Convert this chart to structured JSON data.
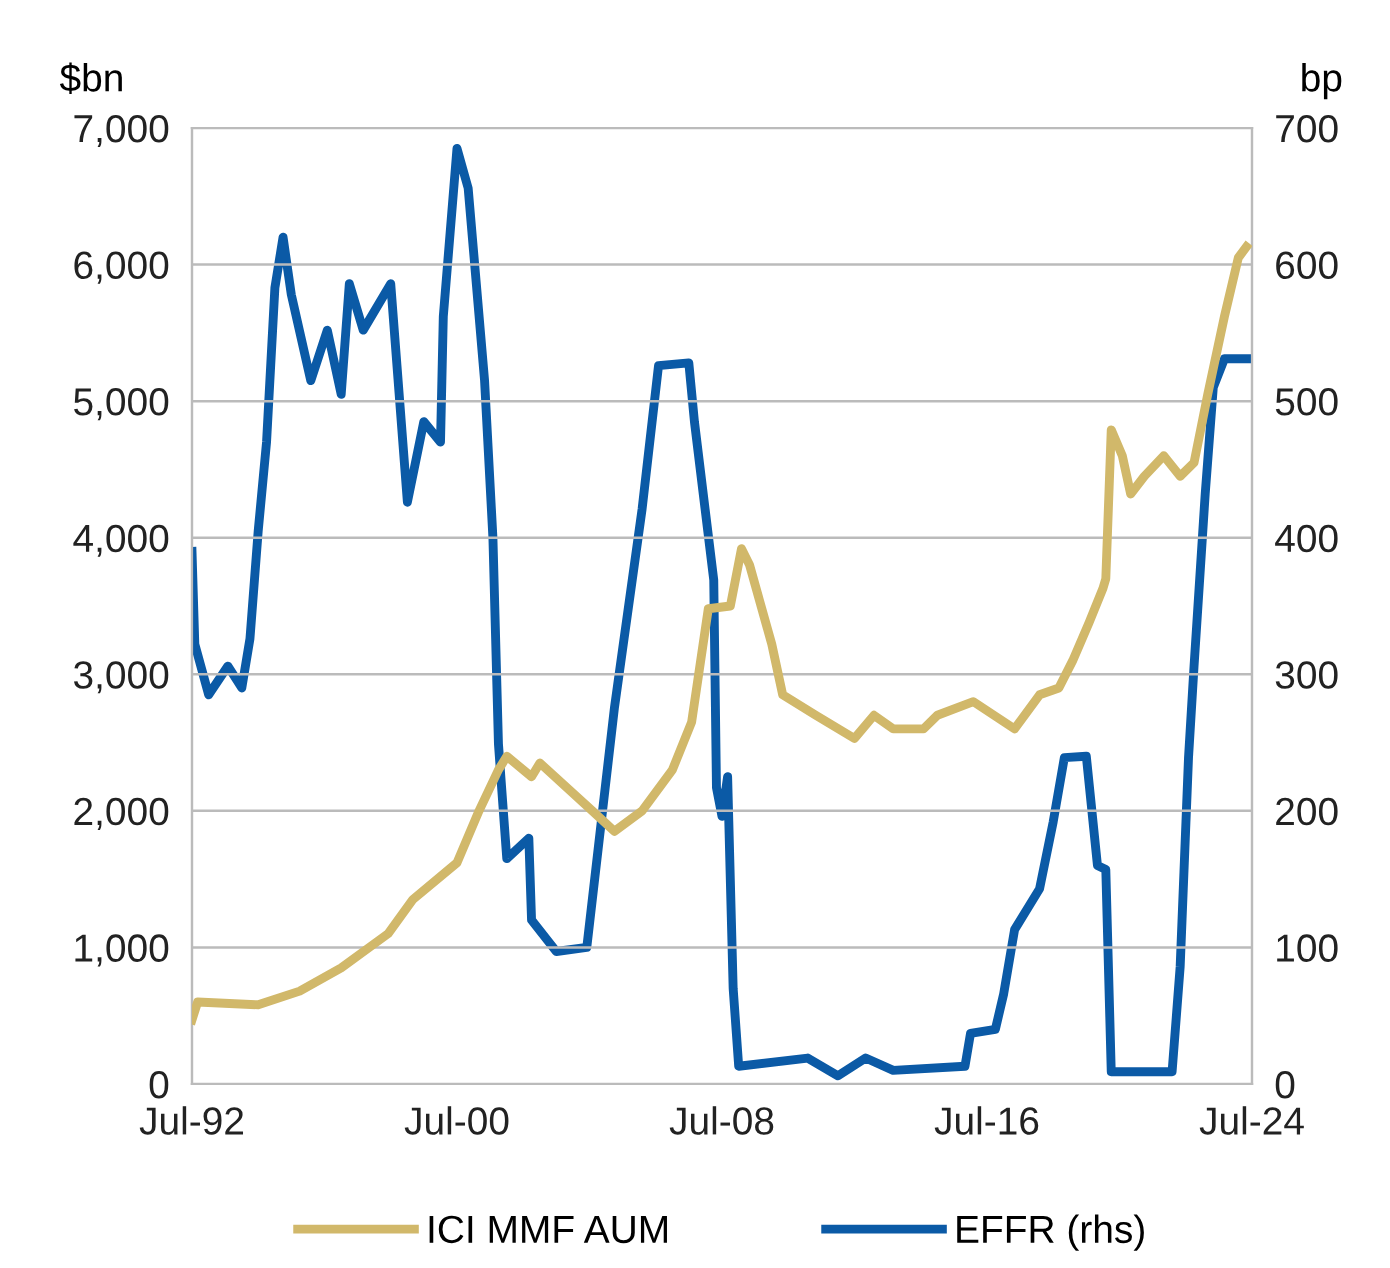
{
  "chart_data": {
    "type": "line",
    "ylabel": "$bn",
    "y2label": "bp",
    "xlim": [
      "1992-07",
      "2024-07"
    ],
    "xticks": [
      {
        "value": "1992-07",
        "label": "Jul-92"
      },
      {
        "value": "2000-07",
        "label": "Jul-00"
      },
      {
        "value": "2008-07",
        "label": "Jul-08"
      },
      {
        "value": "2016-07",
        "label": "Jul-16"
      },
      {
        "value": "2024-07",
        "label": "Jul-24"
      }
    ],
    "ylim": [
      0,
      7000
    ],
    "yticks": [
      {
        "value": 0,
        "label": "0"
      },
      {
        "value": 1000,
        "label": "1,000"
      },
      {
        "value": 2000,
        "label": "2,000"
      },
      {
        "value": 3000,
        "label": "3,000"
      },
      {
        "value": 4000,
        "label": "4,000"
      },
      {
        "value": 5000,
        "label": "5,000"
      },
      {
        "value": 6000,
        "label": "6,000"
      },
      {
        "value": 7000,
        "label": "7,000"
      }
    ],
    "y2lim": [
      0,
      700
    ],
    "y2ticks": [
      0,
      100,
      200,
      300,
      400,
      500,
      600,
      700
    ],
    "grid": "y",
    "legend": "bottom",
    "marker": "none",
    "line_style": "solid",
    "series": [
      {
        "name": "ICI MMF AUM",
        "color": "#d1b86a",
        "x": [
          "1992-07",
          "1992-09",
          "1994-07",
          "1995-10",
          "1997-01",
          "1998-06",
          "1999-03",
          "2000-07",
          "2001-03",
          "2001-10",
          "2002-01",
          "2002-10",
          "2003-01",
          "2004-08",
          "2005-04",
          "2006-02",
          "2007-01",
          "2007-08",
          "2008-02",
          "2008-10",
          "2009-02",
          "2009-05",
          "2010-01",
          "2010-05",
          "2011-05",
          "2012-07",
          "2013-02",
          "2013-09",
          "2014-08",
          "2015-01",
          "2016-02",
          "2017-05",
          "2018-02",
          "2018-09",
          "2019-02",
          "2019-08",
          "2020-01",
          "2020-02",
          "2020-04",
          "2020-08",
          "2020-11",
          "2021-04",
          "2021-11",
          "2022-05",
          "2022-10",
          "2023-03",
          "2023-09",
          "2024-02",
          "2024-05"
        ],
        "values": [
          470,
          600,
          580,
          680,
          850,
          1100,
          1350,
          1620,
          2000,
          2300,
          2400,
          2250,
          2350,
          2000,
          1850,
          2000,
          2300,
          2650,
          3480,
          3500,
          3920,
          3800,
          3220,
          2850,
          2700,
          2530,
          2700,
          2600,
          2600,
          2700,
          2800,
          2600,
          2850,
          2900,
          3100,
          3380,
          3630,
          3700,
          4790,
          4600,
          4320,
          4450,
          4600,
          4450,
          4550,
          5050,
          5620,
          6050,
          6130
        ]
      },
      {
        "name": "EFFR (rhs)",
        "color": "#0b5aa6",
        "axis": "y2",
        "x": [
          "1992-07",
          "1992-08",
          "1993-01",
          "1993-08",
          "1994-01",
          "1994-04",
          "1994-07",
          "1994-10",
          "1995-01",
          "1995-04",
          "1995-07",
          "1996-02",
          "1996-08",
          "1997-01",
          "1997-04",
          "1997-09",
          "1998-07",
          "1999-01",
          "1999-07",
          "2000-01",
          "2000-02",
          "2000-07",
          "2000-11",
          "2001-05",
          "2001-08",
          "2001-10",
          "2002-01",
          "2002-09",
          "2002-10",
          "2003-07",
          "2004-06",
          "2005-04",
          "2006-02",
          "2006-08",
          "2007-07",
          "2007-09",
          "2008-04",
          "2008-05",
          "2008-07",
          "2008-09",
          "2008-11",
          "2009-01",
          "2011-02",
          "2012-01",
          "2012-11",
          "2013-09",
          "2015-11",
          "2016-01",
          "2016-10",
          "2017-01",
          "2017-05",
          "2018-02",
          "2018-07",
          "2018-11",
          "2019-07",
          "2019-11",
          "2020-02",
          "2020-04",
          "2022-02",
          "2022-05",
          "2022-08",
          "2022-10",
          "2023-02",
          "2023-05",
          "2023-09",
          "2024-07"
        ],
        "values": [
          390,
          322,
          285,
          306,
          290,
          326,
          405,
          470,
          583,
          620,
          578,
          515,
          552,
          505,
          586,
          552,
          586,
          426,
          485,
          470,
          562,
          685,
          656,
          515,
          400,
          249,
          165,
          180,
          120,
          97,
          100,
          275,
          421,
          526,
          528,
          485,
          369,
          217,
          196,
          225,
          70,
          13,
          19,
          6,
          19,
          10,
          13,
          37,
          40,
          66,
          113,
          143,
          192,
          239,
          240,
          160,
          157,
          9,
          9,
          86,
          239,
          306,
          432,
          510,
          531,
          531
        ]
      }
    ]
  }
}
